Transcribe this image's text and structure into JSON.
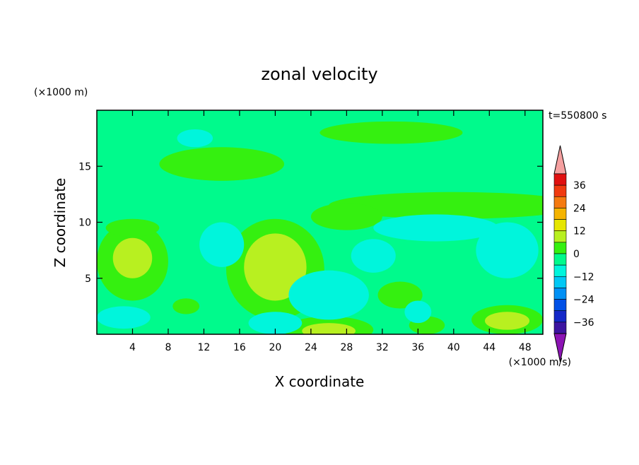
{
  "chart_data": {
    "type": "heatmap",
    "title": "zonal velocity",
    "xlabel": "X coordinate",
    "ylabel": "Z coordinate",
    "x_unit": "(×1000 m/s)",
    "y_unit": "(×1000 m)",
    "time_label": "t=550800 s",
    "xlim": [
      0,
      50
    ],
    "ylim": [
      0,
      20
    ],
    "x_ticks": [
      4,
      8,
      12,
      16,
      20,
      24,
      28,
      32,
      36,
      40,
      44,
      48
    ],
    "y_ticks": [
      5,
      10,
      15
    ],
    "colorbar": {
      "tick_labels": [
        "36",
        "24",
        "12",
        "0",
        "−12",
        "−24",
        "−36"
      ],
      "tick_values": [
        36,
        24,
        12,
        0,
        -12,
        -24,
        -36
      ],
      "levels": [
        {
          "min": 36,
          "max": 42,
          "color": "#e01010"
        },
        {
          "min": 30,
          "max": 36,
          "color": "#f03a10"
        },
        {
          "min": 24,
          "max": 30,
          "color": "#f57a10"
        },
        {
          "min": 18,
          "max": 24,
          "color": "#f5b400"
        },
        {
          "min": 12,
          "max": 18,
          "color": "#e6e600"
        },
        {
          "min": 6,
          "max": 12,
          "color": "#b8f020"
        },
        {
          "min": 0,
          "max": 6,
          "color": "#35f010"
        },
        {
          "min": -6,
          "max": 0,
          "color": "#00fa8c"
        },
        {
          "min": -12,
          "max": -6,
          "color": "#00f5dc"
        },
        {
          "min": -18,
          "max": -12,
          "color": "#00c8f5"
        },
        {
          "min": -24,
          "max": -18,
          "color": "#0090f5"
        },
        {
          "min": -30,
          "max": -24,
          "color": "#0050e6"
        },
        {
          "min": -36,
          "max": -30,
          "color": "#1428c8"
        },
        {
          "min": -42,
          "max": -36,
          "color": "#3c14a0"
        }
      ],
      "over_color": "#f5a0a0",
      "under_color": "#8c14b4"
    },
    "background_color": "#00fa8c",
    "features": [
      {
        "x": 4,
        "z": 6.5,
        "rx": 4,
        "rz": 3.5,
        "value": 3
      },
      {
        "x": 4,
        "z": 6.8,
        "rx": 2.2,
        "rz": 1.8,
        "value": 8
      },
      {
        "x": 20,
        "z": 5.8,
        "rx": 5.5,
        "rz": 4.5,
        "value": 3
      },
      {
        "x": 20,
        "z": 6.0,
        "rx": 3.5,
        "rz": 3.0,
        "value": 8
      },
      {
        "x": 26,
        "z": 0.4,
        "rx": 5,
        "rz": 1.2,
        "value": 3
      },
      {
        "x": 26,
        "z": 0.3,
        "rx": 3,
        "rz": 0.7,
        "value": 9
      },
      {
        "x": 34,
        "z": 3.5,
        "rx": 2.5,
        "rz": 1.2,
        "value": 3
      },
      {
        "x": 46,
        "z": 1.3,
        "rx": 4,
        "rz": 1.3,
        "value": 3
      },
      {
        "x": 46,
        "z": 1.2,
        "rx": 2.5,
        "rz": 0.8,
        "value": 8
      },
      {
        "x": 37,
        "z": 0.8,
        "rx": 2,
        "rz": 0.8,
        "value": 3
      },
      {
        "x": 10,
        "z": 2.5,
        "rx": 1.5,
        "rz": 0.7,
        "value": 3
      },
      {
        "x": 14,
        "z": 15.2,
        "rx": 7,
        "rz": 1.5,
        "value": 2
      },
      {
        "x": 33,
        "z": 18.0,
        "rx": 8,
        "rz": 1.0,
        "value": 2
      },
      {
        "x": 40,
        "z": 11.5,
        "rx": 14,
        "rz": 1.2,
        "value": 2
      },
      {
        "x": 28,
        "z": 10.5,
        "rx": 4,
        "rz": 1.2,
        "value": 2
      },
      {
        "x": 4,
        "z": 9.5,
        "rx": 3,
        "rz": 0.8,
        "value": 2
      },
      {
        "x": 14,
        "z": 8.0,
        "rx": 2.5,
        "rz": 2.0,
        "value": -8
      },
      {
        "x": 26,
        "z": 3.5,
        "rx": 4.5,
        "rz": 2.2,
        "value": -8
      },
      {
        "x": 20,
        "z": 1.0,
        "rx": 3,
        "rz": 1.0,
        "value": -8
      },
      {
        "x": 3,
        "z": 1.5,
        "rx": 3,
        "rz": 1.0,
        "value": -8
      },
      {
        "x": 46,
        "z": 7.5,
        "rx": 3.5,
        "rz": 2.5,
        "value": -8
      },
      {
        "x": 38,
        "z": 9.5,
        "rx": 7,
        "rz": 1.2,
        "value": -8
      },
      {
        "x": 31,
        "z": 7.0,
        "rx": 2.5,
        "rz": 1.5,
        "value": -8
      },
      {
        "x": 11,
        "z": 17.5,
        "rx": 2,
        "rz": 0.8,
        "value": -8
      },
      {
        "x": 36,
        "z": 2.0,
        "rx": 1.5,
        "rz": 1.0,
        "value": -8
      }
    ]
  }
}
